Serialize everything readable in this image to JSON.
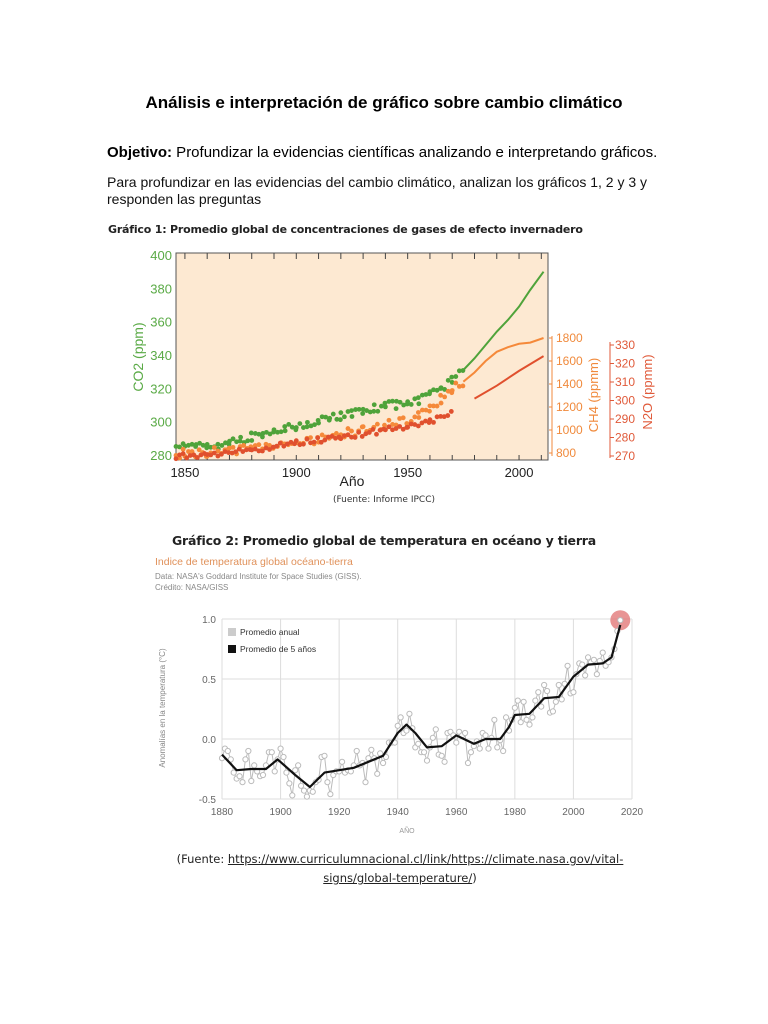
{
  "title": "Análisis e interpretación de gráfico sobre cambio climático",
  "objective": {
    "label": "Objetivo:",
    "text": " Profundizar la evidencias científicas analizando e interpretando gráficos."
  },
  "intro": "Para profundizar en las evidencias del cambio climático, analizan los gráficos 1, 2 y 3 y responden las preguntas",
  "chart1": {
    "caption": "Gráfico 1: Promedio global de concentraciones de gases de efecto invernadero",
    "source": "(Fuente: Informe IPCC)"
  },
  "chart2": {
    "caption": "Gráfico 2: Promedio global de temperatura en océano y tierra",
    "subtitle": "Indice de temperatura global océano-tierra",
    "data_line": "Data: NASA's Goddard Institute for Space Studies (GISS).",
    "credit": "Crédito: NASA/GISS",
    "source_prefix": "(Fuente: ",
    "source_link": "https://www.curriculumnacional.cl/link/https://climate.nasa.gov/vital-signs/global-temperature/",
    "source_suffix": ")"
  },
  "chart_data": [
    {
      "type": "scatter",
      "xlabel": "Año",
      "xlim": [
        1846,
        2013
      ],
      "xticks": [
        "1850",
        "1900",
        "1950",
        "2000"
      ],
      "background": "#fde9d2",
      "axes": [
        {
          "label": "CO2 (ppm)",
          "ylim": [
            280,
            400
          ],
          "ticks": [
            "280",
            "300",
            "320",
            "340",
            "360",
            "380",
            "400"
          ],
          "color": "#5aaa46"
        },
        {
          "label": "CH4 (ppmm)",
          "ylim": [
            800,
            1800
          ],
          "ticks": [
            "800",
            "1000",
            "1200",
            "1400",
            "1600",
            "1800"
          ],
          "color": "#f08a3c"
        },
        {
          "label": "N2O (ppmm)",
          "ylim": [
            270,
            330
          ],
          "ticks": [
            "270",
            "280",
            "290",
            "300",
            "310",
            "320",
            "330"
          ],
          "color": "#e05a3a"
        }
      ],
      "series": [
        {
          "axis": 0,
          "color": "#4fa33a",
          "points": [
            [
              1846,
              284
            ],
            [
              1850,
              287
            ],
            [
              1855,
              286
            ],
            [
              1860,
              286
            ],
            [
              1865,
              285
            ],
            [
              1870,
              288
            ],
            [
              1875,
              289
            ],
            [
              1880,
              291
            ],
            [
              1885,
              292
            ],
            [
              1890,
              294
            ],
            [
              1895,
              296
            ],
            [
              1900,
              296
            ],
            [
              1905,
              298
            ],
            [
              1910,
              300
            ],
            [
              1915,
              302
            ],
            [
              1920,
              303
            ],
            [
              1925,
              305
            ],
            [
              1930,
              306
            ],
            [
              1935,
              308
            ],
            [
              1940,
              310
            ],
            [
              1945,
              310
            ],
            [
              1950,
              311
            ],
            [
              1955,
              313
            ],
            [
              1960,
              317
            ],
            [
              1965,
              320
            ],
            [
              1970,
              325
            ],
            [
              1975,
              331
            ],
            [
              1980,
              338
            ],
            [
              1985,
              346
            ],
            [
              1990,
              354
            ],
            [
              1995,
              361
            ],
            [
              2000,
              369
            ],
            [
              2005,
              379
            ],
            [
              2011,
              390
            ]
          ]
        },
        {
          "axis": 1,
          "color": "#f5893a",
          "points": [
            [
              1846,
              790
            ],
            [
              1850,
              795
            ],
            [
              1860,
              805
            ],
            [
              1870,
              820
            ],
            [
              1880,
              850
            ],
            [
              1890,
              870
            ],
            [
              1900,
              880
            ],
            [
              1910,
              920
            ],
            [
              1920,
              960
            ],
            [
              1930,
              1000
            ],
            [
              1940,
              1040
            ],
            [
              1950,
              1080
            ],
            [
              1955,
              1130
            ],
            [
              1960,
              1200
            ],
            [
              1965,
              1270
            ],
            [
              1970,
              1350
            ],
            [
              1975,
              1420
            ],
            [
              1980,
              1500
            ],
            [
              1985,
              1600
            ],
            [
              1990,
              1680
            ],
            [
              1995,
              1720
            ],
            [
              2000,
              1750
            ],
            [
              2005,
              1760
            ],
            [
              2011,
              1800
            ]
          ]
        },
        {
          "axis": 2,
          "color": "#e0502e",
          "points": [
            [
              1846,
              270
            ],
            [
              1860,
              271
            ],
            [
              1880,
              273
            ],
            [
              1900,
              277
            ],
            [
              1920,
              280
            ],
            [
              1940,
              284
            ],
            [
              1950,
              286
            ],
            [
              1960,
              289
            ],
            [
              1970,
              293
            ],
            [
              1980,
              301
            ],
            [
              1990,
              308
            ],
            [
              2000,
              316
            ],
            [
              2011,
              324
            ]
          ]
        }
      ]
    },
    {
      "type": "line",
      "xlabel": "AÑO",
      "ylabel": "Anomalías en la temperatura (°C)",
      "xlim": [
        1880,
        2020
      ],
      "ylim": [
        -0.5,
        1.0
      ],
      "xticks": [
        "1880",
        "1900",
        "1920",
        "1940",
        "1960",
        "1980",
        "2000",
        "2020"
      ],
      "yticks": [
        "-0.5",
        "0.0",
        "0.5",
        "1.0"
      ],
      "grid": true,
      "legend": {
        "position": "top-left",
        "items": [
          "Promedio anual",
          "Promedio de 5 años"
        ]
      },
      "highlight_color": "#e07070",
      "series": [
        {
          "name": "Promedio anual",
          "color": "#bbbbbb",
          "start_year": 1880,
          "values": [
            -0.16,
            -0.08,
            -0.1,
            -0.17,
            -0.28,
            -0.33,
            -0.31,
            -0.36,
            -0.17,
            -0.1,
            -0.35,
            -0.22,
            -0.27,
            -0.31,
            -0.3,
            -0.22,
            -0.11,
            -0.11,
            -0.27,
            -0.17,
            -0.08,
            -0.15,
            -0.28,
            -0.37,
            -0.47,
            -0.26,
            -0.22,
            -0.39,
            -0.43,
            -0.48,
            -0.43,
            -0.44,
            -0.36,
            -0.34,
            -0.15,
            -0.14,
            -0.36,
            -0.46,
            -0.3,
            -0.27,
            -0.27,
            -0.19,
            -0.28,
            -0.26,
            -0.27,
            -0.22,
            -0.1,
            -0.22,
            -0.2,
            -0.36,
            -0.16,
            -0.09,
            -0.16,
            -0.29,
            -0.12,
            -0.2,
            -0.15,
            -0.03,
            -0.03,
            -0.03,
            0.11,
            0.18,
            0.05,
            0.07,
            0.21,
            0.09,
            -0.07,
            -0.04,
            -0.11,
            -0.11,
            -0.18,
            -0.07,
            0.01,
            0.08,
            -0.13,
            -0.14,
            -0.19,
            0.05,
            0.06,
            0.03,
            -0.03,
            0.06,
            0.03,
            0.05,
            -0.2,
            -0.11,
            -0.06,
            -0.02,
            -0.08,
            0.05,
            0.03,
            -0.08,
            0.01,
            0.16,
            -0.07,
            -0.01,
            -0.1,
            0.18,
            0.07,
            0.16,
            0.26,
            0.32,
            0.14,
            0.31,
            0.16,
            0.12,
            0.18,
            0.32,
            0.39,
            0.27,
            0.45,
            0.4,
            0.22,
            0.23,
            0.31,
            0.45,
            0.33,
            0.46,
            0.61,
            0.38,
            0.39,
            0.54,
            0.63,
            0.62,
            0.53,
            0.68,
            0.64,
            0.66,
            0.54,
            0.65,
            0.72,
            0.61,
            0.64,
            0.68,
            0.75,
            0.9,
            0.99
          ]
        },
        {
          "name": "Promedio de 5 años",
          "color": "#111111",
          "points": [
            [
              1880,
              -0.13
            ],
            [
              1885,
              -0.26
            ],
            [
              1890,
              -0.25
            ],
            [
              1895,
              -0.25
            ],
            [
              1899,
              -0.17
            ],
            [
              1905,
              -0.3
            ],
            [
              1910,
              -0.4
            ],
            [
              1915,
              -0.28
            ],
            [
              1920,
              -0.26
            ],
            [
              1925,
              -0.24
            ],
            [
              1930,
              -0.19
            ],
            [
              1935,
              -0.14
            ],
            [
              1940,
              0.05
            ],
            [
              1943,
              0.12
            ],
            [
              1946,
              0.05
            ],
            [
              1950,
              -0.07
            ],
            [
              1955,
              -0.06
            ],
            [
              1960,
              0.03
            ],
            [
              1966,
              -0.04
            ],
            [
              1970,
              0.0
            ],
            [
              1975,
              0.0
            ],
            [
              1978,
              0.1
            ],
            [
              1980,
              0.2
            ],
            [
              1985,
              0.21
            ],
            [
              1990,
              0.34
            ],
            [
              1995,
              0.35
            ],
            [
              2000,
              0.52
            ],
            [
              2005,
              0.62
            ],
            [
              2010,
              0.63
            ],
            [
              2013,
              0.68
            ],
            [
              2016,
              0.95
            ]
          ]
        }
      ]
    }
  ]
}
